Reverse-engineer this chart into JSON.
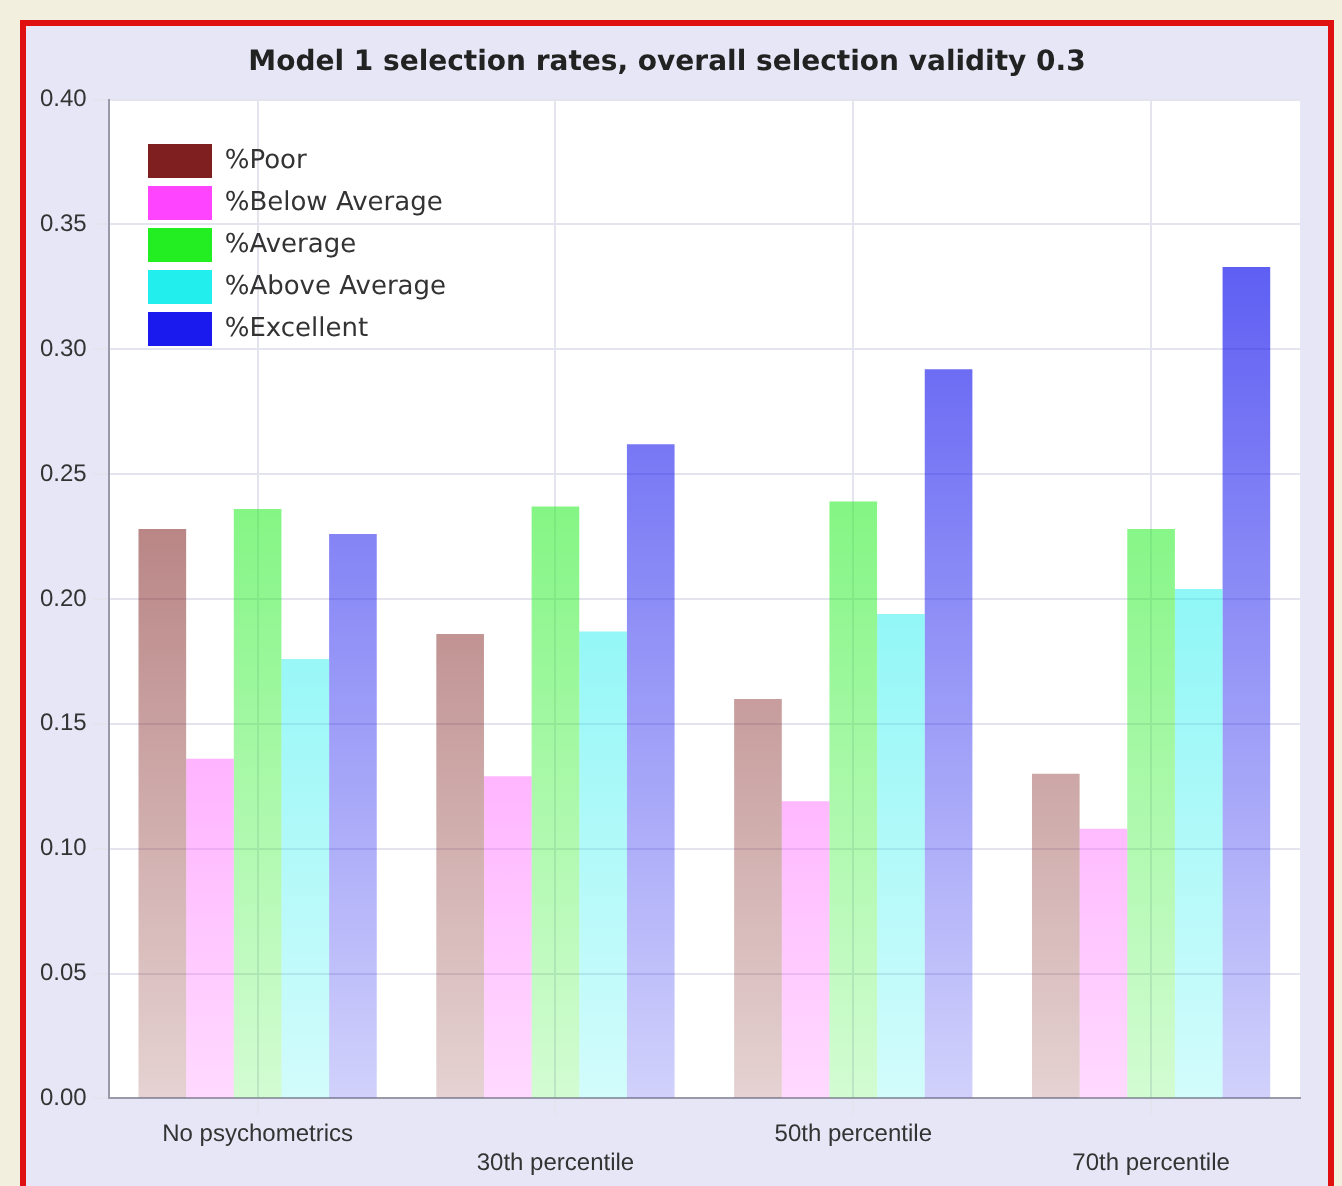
{
  "chart_data": {
    "type": "bar",
    "title": "Model 1 selection rates, overall selection validity 0.3",
    "categories": [
      "No psychometrics",
      "30th percentile",
      "50th percentile",
      "70th percentile"
    ],
    "series": [
      {
        "name": "%Poor",
        "color": "#7f1f1f",
        "values": [
          0.228,
          0.186,
          0.16,
          0.13
        ]
      },
      {
        "name": "%Below Average",
        "color": "#ff44ff",
        "values": [
          0.136,
          0.129,
          0.119,
          0.108
        ]
      },
      {
        "name": "%Average",
        "color": "#22ee22",
        "values": [
          0.236,
          0.237,
          0.239,
          0.228
        ]
      },
      {
        "name": "%Above Average",
        "color": "#22eeee",
        "values": [
          0.176,
          0.187,
          0.194,
          0.204
        ]
      },
      {
        "name": "%Excellent",
        "color": "#1a1aee",
        "values": [
          0.226,
          0.262,
          0.292,
          0.333
        ]
      }
    ],
    "ylim": [
      0,
      0.4
    ],
    "yticks": [
      {
        "value": 0,
        "label": "0.00"
      },
      {
        "value": 0.05,
        "label": "0.05"
      },
      {
        "value": 0.1,
        "label": "0.10"
      },
      {
        "value": 0.15,
        "label": "0.15"
      },
      {
        "value": 0.2,
        "label": "0.20"
      },
      {
        "value": 0.25,
        "label": "0.25"
      },
      {
        "value": 0.3,
        "label": "0.30"
      },
      {
        "value": 0.35,
        "label": "0.35"
      },
      {
        "value": 0.4,
        "label": "0.40"
      }
    ],
    "grid": true,
    "legend": "top left"
  }
}
